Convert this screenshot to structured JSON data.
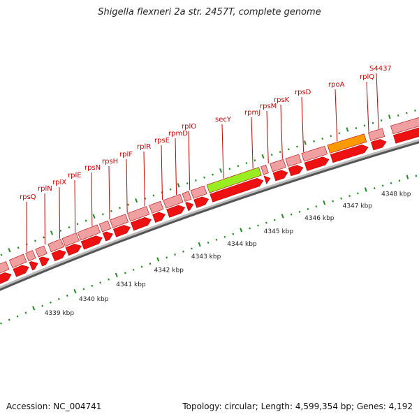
{
  "title": "Shigella flexneri 2a str. 2457T, complete genome",
  "footer": {
    "accession": "Accession: NC_004741",
    "summary": "Topology: circular; Length: 4,599,354 bp; Genes: 4,192"
  },
  "colors": {
    "gene_forward": "#ee1111",
    "gene_light": "#f0a0a0",
    "secY": "#99ee22",
    "rpoA": "#ff9900",
    "label": "#cc0000",
    "tick": "#228822",
    "backbone": "#888888"
  },
  "scale_labels": [
    "4339 kbp",
    "4340 kbp",
    "4341 kbp",
    "4342 kbp",
    "4343 kbp",
    "4344 kbp",
    "4345 kbp",
    "4346 kbp",
    "4347 kbp",
    "4348 kbp"
  ],
  "gene_labels": [
    "rpsQ",
    "rplN",
    "rplX",
    "rplE",
    "rpsN",
    "rpsH",
    "rplF",
    "rplR",
    "rpsE",
    "rpmD",
    "rplO",
    "secY",
    "rpmJ",
    "rpsM",
    "rpsK",
    "rpsD",
    "rpoA",
    "rplQ",
    "S4437"
  ]
}
